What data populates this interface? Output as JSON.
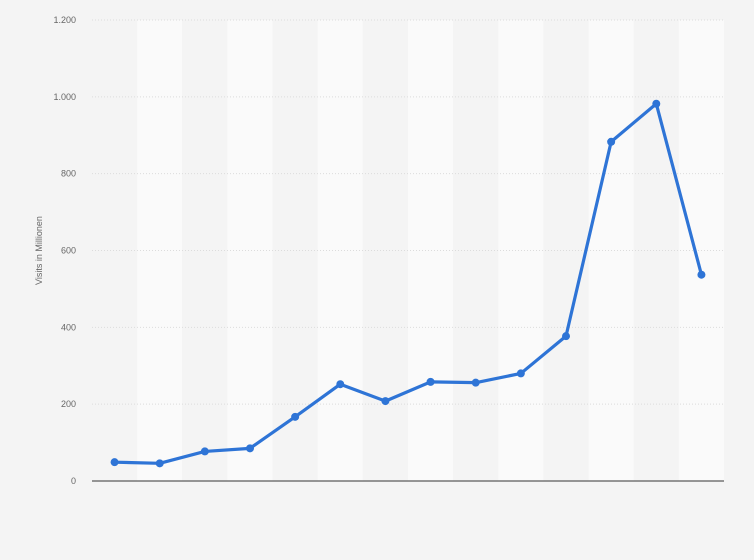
{
  "chart_data": {
    "type": "line",
    "ylabel": "Visits in Millionen",
    "ylim": [
      0,
      1200
    ],
    "y_ticks": [
      0,
      200,
      400,
      600,
      800,
      1000,
      1200
    ],
    "y_tick_labels": [
      "0",
      "200",
      "400",
      "600",
      "800",
      "1.000",
      "1.200"
    ],
    "grid": true,
    "series": [
      {
        "values": [
          49,
          46,
          77,
          85,
          167,
          252,
          208,
          258,
          256,
          280,
          377,
          883,
          982,
          537
        ],
        "color": "#2e74d6"
      }
    ]
  }
}
